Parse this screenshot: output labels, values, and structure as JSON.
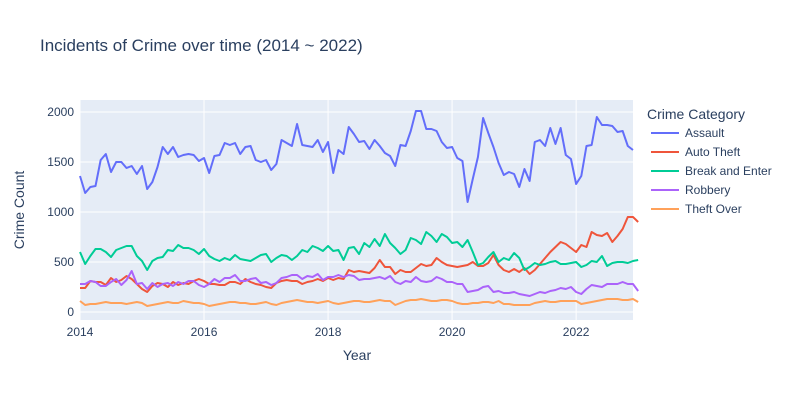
{
  "chart_data": {
    "type": "line",
    "title": "Incidents of Crime over time (2014 ~ 2022)",
    "xlabel": "Year",
    "ylabel": "Crime Count",
    "legend_title": "Crime Category",
    "legend_position": "right",
    "grid": true,
    "background": "#e5ecf6",
    "xlim": [
      2014.0,
      2022.917
    ],
    "ylim": [
      -80,
      2120
    ],
    "x_ticks": [
      2014,
      2016,
      2018,
      2020,
      2022
    ],
    "y_ticks": [
      0,
      500,
      1000,
      1500,
      2000
    ],
    "y_tick_labels": [
      "0",
      "500",
      "1000",
      "1500",
      "2000"
    ],
    "x_start": 2014.0,
    "x_step_months": 1,
    "series": [
      {
        "name": "Assault",
        "color": "#636efa",
        "values": [
          1360,
          1190,
          1250,
          1260,
          1520,
          1580,
          1400,
          1500,
          1500,
          1440,
          1460,
          1380,
          1460,
          1230,
          1300,
          1450,
          1650,
          1580,
          1650,
          1550,
          1570,
          1580,
          1570,
          1510,
          1540,
          1390,
          1560,
          1570,
          1690,
          1670,
          1690,
          1580,
          1650,
          1660,
          1520,
          1500,
          1520,
          1420,
          1480,
          1720,
          1690,
          1660,
          1880,
          1670,
          1660,
          1650,
          1720,
          1600,
          1700,
          1390,
          1620,
          1580,
          1850,
          1780,
          1700,
          1710,
          1630,
          1720,
          1660,
          1590,
          1560,
          1460,
          1670,
          1660,
          1810,
          2010,
          2010,
          1830,
          1830,
          1810,
          1700,
          1640,
          1650,
          1540,
          1510,
          1100,
          1330,
          1550,
          1940,
          1790,
          1650,
          1490,
          1370,
          1400,
          1380,
          1250,
          1430,
          1310,
          1700,
          1720,
          1660,
          1840,
          1680,
          1840,
          1570,
          1530,
          1280,
          1360,
          1660,
          1670,
          1950,
          1870,
          1870,
          1860,
          1800,
          1810,
          1660,
          1620
        ]
      },
      {
        "name": "Auto Theft",
        "color": "#ef553b",
        "values": [
          240,
          240,
          310,
          300,
          300,
          270,
          340,
          300,
          320,
          360,
          330,
          280,
          230,
          200,
          260,
          290,
          280,
          250,
          300,
          270,
          290,
          280,
          310,
          330,
          310,
          280,
          280,
          270,
          270,
          300,
          300,
          280,
          330,
          300,
          280,
          270,
          250,
          240,
          290,
          310,
          320,
          310,
          310,
          280,
          300,
          310,
          330,
          310,
          340,
          320,
          340,
          330,
          420,
          400,
          410,
          400,
          390,
          440,
          520,
          450,
          450,
          380,
          420,
          400,
          400,
          440,
          480,
          460,
          470,
          540,
          500,
          470,
          460,
          450,
          460,
          470,
          500,
          460,
          460,
          490,
          570,
          470,
          420,
          400,
          430,
          400,
          440,
          380,
          420,
          480,
          540,
          600,
          650,
          700,
          680,
          640,
          600,
          670,
          650,
          800,
          770,
          760,
          790,
          700,
          760,
          830,
          950,
          950,
          900
        ]
      },
      {
        "name": "Break and Enter",
        "color": "#00cc96",
        "values": [
          600,
          480,
          560,
          630,
          630,
          600,
          550,
          620,
          640,
          660,
          660,
          560,
          510,
          420,
          510,
          540,
          550,
          620,
          610,
          670,
          640,
          640,
          620,
          580,
          630,
          560,
          530,
          510,
          540,
          520,
          570,
          530,
          520,
          510,
          540,
          570,
          580,
          500,
          540,
          570,
          560,
          520,
          560,
          620,
          600,
          660,
          640,
          610,
          660,
          610,
          620,
          520,
          640,
          650,
          580,
          690,
          650,
          730,
          660,
          780,
          690,
          640,
          580,
          620,
          740,
          720,
          680,
          800,
          760,
          700,
          780,
          750,
          690,
          700,
          650,
          720,
          600,
          470,
          490,
          550,
          600,
          500,
          540,
          520,
          590,
          540,
          420,
          450,
          490,
          470,
          480,
          500,
          510,
          480,
          480,
          490,
          500,
          450,
          470,
          510,
          500,
          560,
          460,
          490,
          500,
          500,
          490,
          510,
          520
        ]
      },
      {
        "name": "Robbery",
        "color": "#ab63fa",
        "values": [
          280,
          280,
          310,
          300,
          260,
          260,
          300,
          330,
          270,
          320,
          410,
          280,
          290,
          230,
          290,
          250,
          280,
          290,
          260,
          300,
          280,
          310,
          310,
          270,
          250,
          280,
          330,
          300,
          340,
          340,
          370,
          310,
          310,
          330,
          340,
          290,
          300,
          270,
          290,
          340,
          350,
          370,
          370,
          330,
          360,
          350,
          380,
          320,
          350,
          350,
          370,
          350,
          370,
          360,
          320,
          330,
          330,
          340,
          350,
          330,
          360,
          300,
          280,
          310,
          300,
          350,
          310,
          300,
          310,
          350,
          330,
          300,
          300,
          280,
          280,
          200,
          210,
          220,
          250,
          260,
          200,
          210,
          190,
          190,
          200,
          180,
          170,
          160,
          180,
          200,
          190,
          210,
          220,
          240,
          230,
          250,
          200,
          180,
          230,
          270,
          260,
          250,
          280,
          280,
          280,
          300,
          280,
          280,
          210
        ]
      },
      {
        "name": "Theft Over",
        "color": "#ffa15a",
        "values": [
          110,
          70,
          80,
          80,
          90,
          100,
          90,
          90,
          90,
          80,
          90,
          100,
          90,
          60,
          70,
          80,
          90,
          100,
          90,
          90,
          110,
          100,
          90,
          90,
          80,
          60,
          70,
          80,
          90,
          100,
          100,
          90,
          90,
          80,
          80,
          90,
          100,
          80,
          70,
          90,
          100,
          110,
          120,
          110,
          100,
          100,
          90,
          100,
          110,
          90,
          80,
          90,
          100,
          110,
          110,
          100,
          100,
          110,
          120,
          110,
          110,
          70,
          90,
          110,
          120,
          120,
          130,
          120,
          110,
          110,
          120,
          120,
          110,
          90,
          80,
          80,
          90,
          90,
          100,
          100,
          90,
          110,
          80,
          80,
          70,
          70,
          70,
          70,
          90,
          100,
          110,
          100,
          100,
          110,
          110,
          110,
          110,
          80,
          90,
          100,
          110,
          120,
          130,
          130,
          130,
          120,
          120,
          130,
          100
        ]
      }
    ]
  }
}
